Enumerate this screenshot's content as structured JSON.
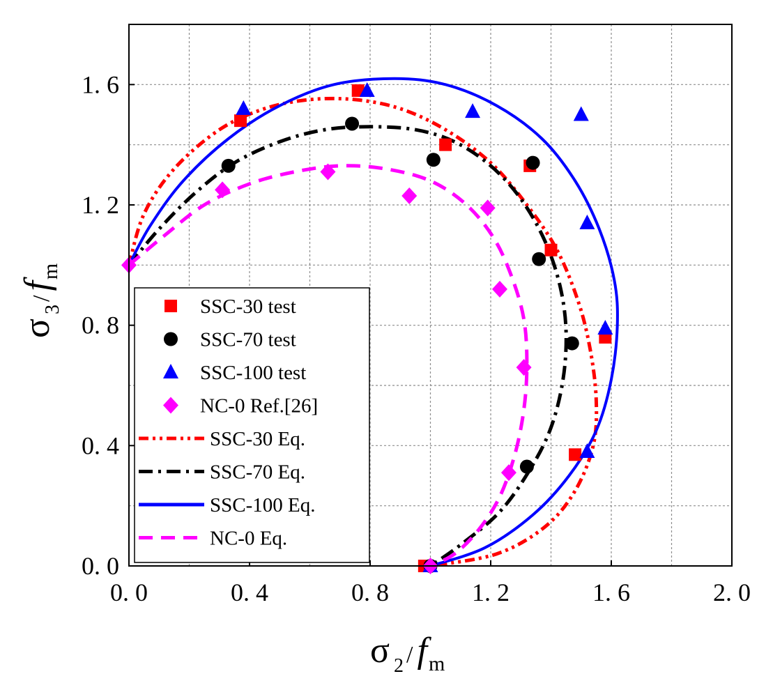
{
  "chart_data": {
    "type": "scatter",
    "xlabel": "σ2/fm",
    "ylabel": "σ3/fm",
    "xlim": [
      0,
      2.0
    ],
    "ylim": [
      0,
      1.8
    ],
    "grid": true,
    "legend_position": "bottom-left",
    "x_ticks": [
      0.0,
      0.4,
      0.8,
      1.2,
      1.6,
      2.0
    ],
    "y_ticks": [
      0.0,
      0.4,
      0.8,
      1.2,
      1.6
    ],
    "x_tick_labels": [
      "0. 0",
      "0. 4",
      "0. 8",
      "1. 2",
      "1. 6",
      "2. 0"
    ],
    "y_tick_labels": [
      "0. 0",
      "0. 4",
      "0. 8",
      "1. 2",
      "1. 6"
    ],
    "axis_titles": {
      "x": {
        "sigma": "σ",
        "sub": "2",
        "slash": "/",
        "f": "f",
        "m": "m"
      },
      "y": {
        "sigma": "σ",
        "sub": "3",
        "slash": "/",
        "f": "f",
        "m": "m"
      }
    },
    "scatter_series": [
      {
        "name": "SSC-30 test",
        "color": "#ff0000",
        "marker": "square",
        "points": [
          [
            0.37,
            1.48
          ],
          [
            0.76,
            1.58
          ],
          [
            1.05,
            1.4
          ],
          [
            1.33,
            1.33
          ],
          [
            1.4,
            1.05
          ],
          [
            1.58,
            0.76
          ],
          [
            1.48,
            0.37
          ],
          [
            0.98,
            0.0
          ]
        ]
      },
      {
        "name": "SSC-70 test",
        "color": "#000000",
        "marker": "circle",
        "points": [
          [
            0.33,
            1.33
          ],
          [
            0.74,
            1.47
          ],
          [
            1.01,
            1.35
          ],
          [
            1.34,
            1.34
          ],
          [
            1.36,
            1.02
          ],
          [
            1.47,
            0.74
          ],
          [
            1.32,
            0.33
          ],
          [
            1.0,
            0.0
          ]
        ]
      },
      {
        "name": "SSC-100 test",
        "color": "#0000ff",
        "marker": "triangle",
        "points": [
          [
            0.38,
            1.52
          ],
          [
            0.79,
            1.58
          ],
          [
            1.14,
            1.51
          ],
          [
            1.5,
            1.5
          ],
          [
            1.52,
            1.14
          ],
          [
            1.58,
            0.79
          ],
          [
            1.52,
            0.38
          ],
          [
            1.0,
            0.0
          ]
        ]
      },
      {
        "name": "NC-0 Ref.[26]",
        "color": "#ff00ff",
        "marker": "diamond",
        "points": [
          [
            0.31,
            1.25
          ],
          [
            0.66,
            1.31
          ],
          [
            0.93,
            1.23
          ],
          [
            1.19,
            1.19
          ],
          [
            1.23,
            0.92
          ],
          [
            1.31,
            0.66
          ],
          [
            1.26,
            0.31
          ],
          [
            1.0,
            0.0
          ],
          [
            0.0,
            1.0
          ]
        ]
      }
    ],
    "curve_series": [
      {
        "name": "SSC-30 Eq.",
        "color": "#ff0000",
        "style": "dash-dot-dot",
        "points": [
          [
            0.0,
            1.0
          ],
          [
            0.05,
            1.17
          ],
          [
            0.15,
            1.32
          ],
          [
            0.3,
            1.45
          ],
          [
            0.45,
            1.52
          ],
          [
            0.6,
            1.55
          ],
          [
            0.75,
            1.55
          ],
          [
            0.9,
            1.52
          ],
          [
            1.05,
            1.45
          ],
          [
            1.2,
            1.34
          ],
          [
            1.32,
            1.2
          ],
          [
            1.42,
            1.05
          ],
          [
            1.49,
            0.88
          ],
          [
            1.53,
            0.72
          ],
          [
            1.55,
            0.55
          ],
          [
            1.54,
            0.4
          ],
          [
            1.48,
            0.25
          ],
          [
            1.38,
            0.13
          ],
          [
            1.22,
            0.04
          ],
          [
            1.0,
            0.0
          ]
        ]
      },
      {
        "name": "SSC-70 Eq.",
        "color": "#000000",
        "style": "dash-dot",
        "points": [
          [
            0.0,
            1.0
          ],
          [
            0.1,
            1.12
          ],
          [
            0.22,
            1.24
          ],
          [
            0.35,
            1.34
          ],
          [
            0.5,
            1.41
          ],
          [
            0.65,
            1.45
          ],
          [
            0.8,
            1.46
          ],
          [
            0.95,
            1.45
          ],
          [
            1.08,
            1.41
          ],
          [
            1.2,
            1.33
          ],
          [
            1.3,
            1.22
          ],
          [
            1.38,
            1.08
          ],
          [
            1.43,
            0.93
          ],
          [
            1.45,
            0.78
          ],
          [
            1.44,
            0.62
          ],
          [
            1.4,
            0.46
          ],
          [
            1.33,
            0.32
          ],
          [
            1.23,
            0.18
          ],
          [
            1.1,
            0.07
          ],
          [
            1.0,
            0.0
          ]
        ]
      },
      {
        "name": "SSC-100 Eq.",
        "color": "#0000ff",
        "style": "solid",
        "points": [
          [
            0.0,
            1.0
          ],
          [
            0.07,
            1.13
          ],
          [
            0.18,
            1.28
          ],
          [
            0.33,
            1.42
          ],
          [
            0.5,
            1.53
          ],
          [
            0.68,
            1.6
          ],
          [
            0.88,
            1.62
          ],
          [
            1.05,
            1.6
          ],
          [
            1.22,
            1.53
          ],
          [
            1.37,
            1.42
          ],
          [
            1.48,
            1.28
          ],
          [
            1.56,
            1.12
          ],
          [
            1.61,
            0.95
          ],
          [
            1.62,
            0.8
          ],
          [
            1.6,
            0.62
          ],
          [
            1.55,
            0.45
          ],
          [
            1.46,
            0.3
          ],
          [
            1.34,
            0.17
          ],
          [
            1.18,
            0.06
          ],
          [
            1.0,
            0.0
          ]
        ]
      },
      {
        "name": "NC-0 Eq.",
        "color": "#ff00ff",
        "style": "dash",
        "points": [
          [
            0.0,
            1.0
          ],
          [
            0.12,
            1.1
          ],
          [
            0.25,
            1.2
          ],
          [
            0.4,
            1.27
          ],
          [
            0.55,
            1.31
          ],
          [
            0.7,
            1.33
          ],
          [
            0.85,
            1.32
          ],
          [
            1.0,
            1.28
          ],
          [
            1.12,
            1.2
          ],
          [
            1.21,
            1.09
          ],
          [
            1.27,
            0.96
          ],
          [
            1.31,
            0.82
          ],
          [
            1.32,
            0.67
          ],
          [
            1.31,
            0.52
          ],
          [
            1.28,
            0.37
          ],
          [
            1.23,
            0.23
          ],
          [
            1.16,
            0.12
          ],
          [
            1.08,
            0.04
          ],
          [
            1.0,
            0.0
          ]
        ]
      }
    ],
    "legend": [
      {
        "label": "SSC-30 test",
        "color": "#ff0000",
        "kind": "square"
      },
      {
        "label": "SSC-70 test",
        "color": "#000000",
        "kind": "circle"
      },
      {
        "label": "SSC-100 test",
        "color": "#0000ff",
        "kind": "triangle"
      },
      {
        "label": "NC-0 Ref.[26]",
        "color": "#ff00ff",
        "kind": "diamond"
      },
      {
        "label": "SSC-30 Eq.",
        "color": "#ff0000",
        "kind": "dash-dot-dot"
      },
      {
        "label": "SSC-70 Eq.",
        "color": "#000000",
        "kind": "dash-dot"
      },
      {
        "label": "SSC-100 Eq.",
        "color": "#0000ff",
        "kind": "solid"
      },
      {
        "label": "NC-0 Eq.",
        "color": "#ff00ff",
        "kind": "dash"
      }
    ]
  }
}
